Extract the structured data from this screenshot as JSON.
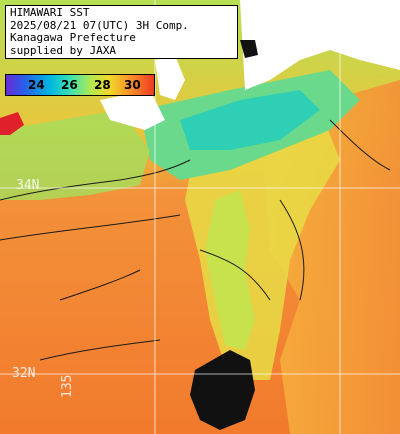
{
  "title_lines": [
    "HIMAWARI SST",
    "2025/08/21 07(UTC) 3H Comp.",
    "Kanagawa Prefecture",
    "supplied by JAXA"
  ],
  "legend": {
    "ticks": [
      "24",
      "26",
      "28",
      "30"
    ]
  },
  "grid_labels": {
    "lat_upper": "34N",
    "lat_lower": "32N",
    "lon_lower": "135"
  },
  "colors": {
    "warm_sea": "#f07a2a",
    "mid_sea": "#f5a83a",
    "yellow_sea": "#e8dc45",
    "cool_sea": "#6ad98c",
    "coolest_sea": "#2fcfb5",
    "land": "#ffffff",
    "cloud": "#000000",
    "grid": "#ffffff",
    "red_coast": "#e0202a"
  }
}
